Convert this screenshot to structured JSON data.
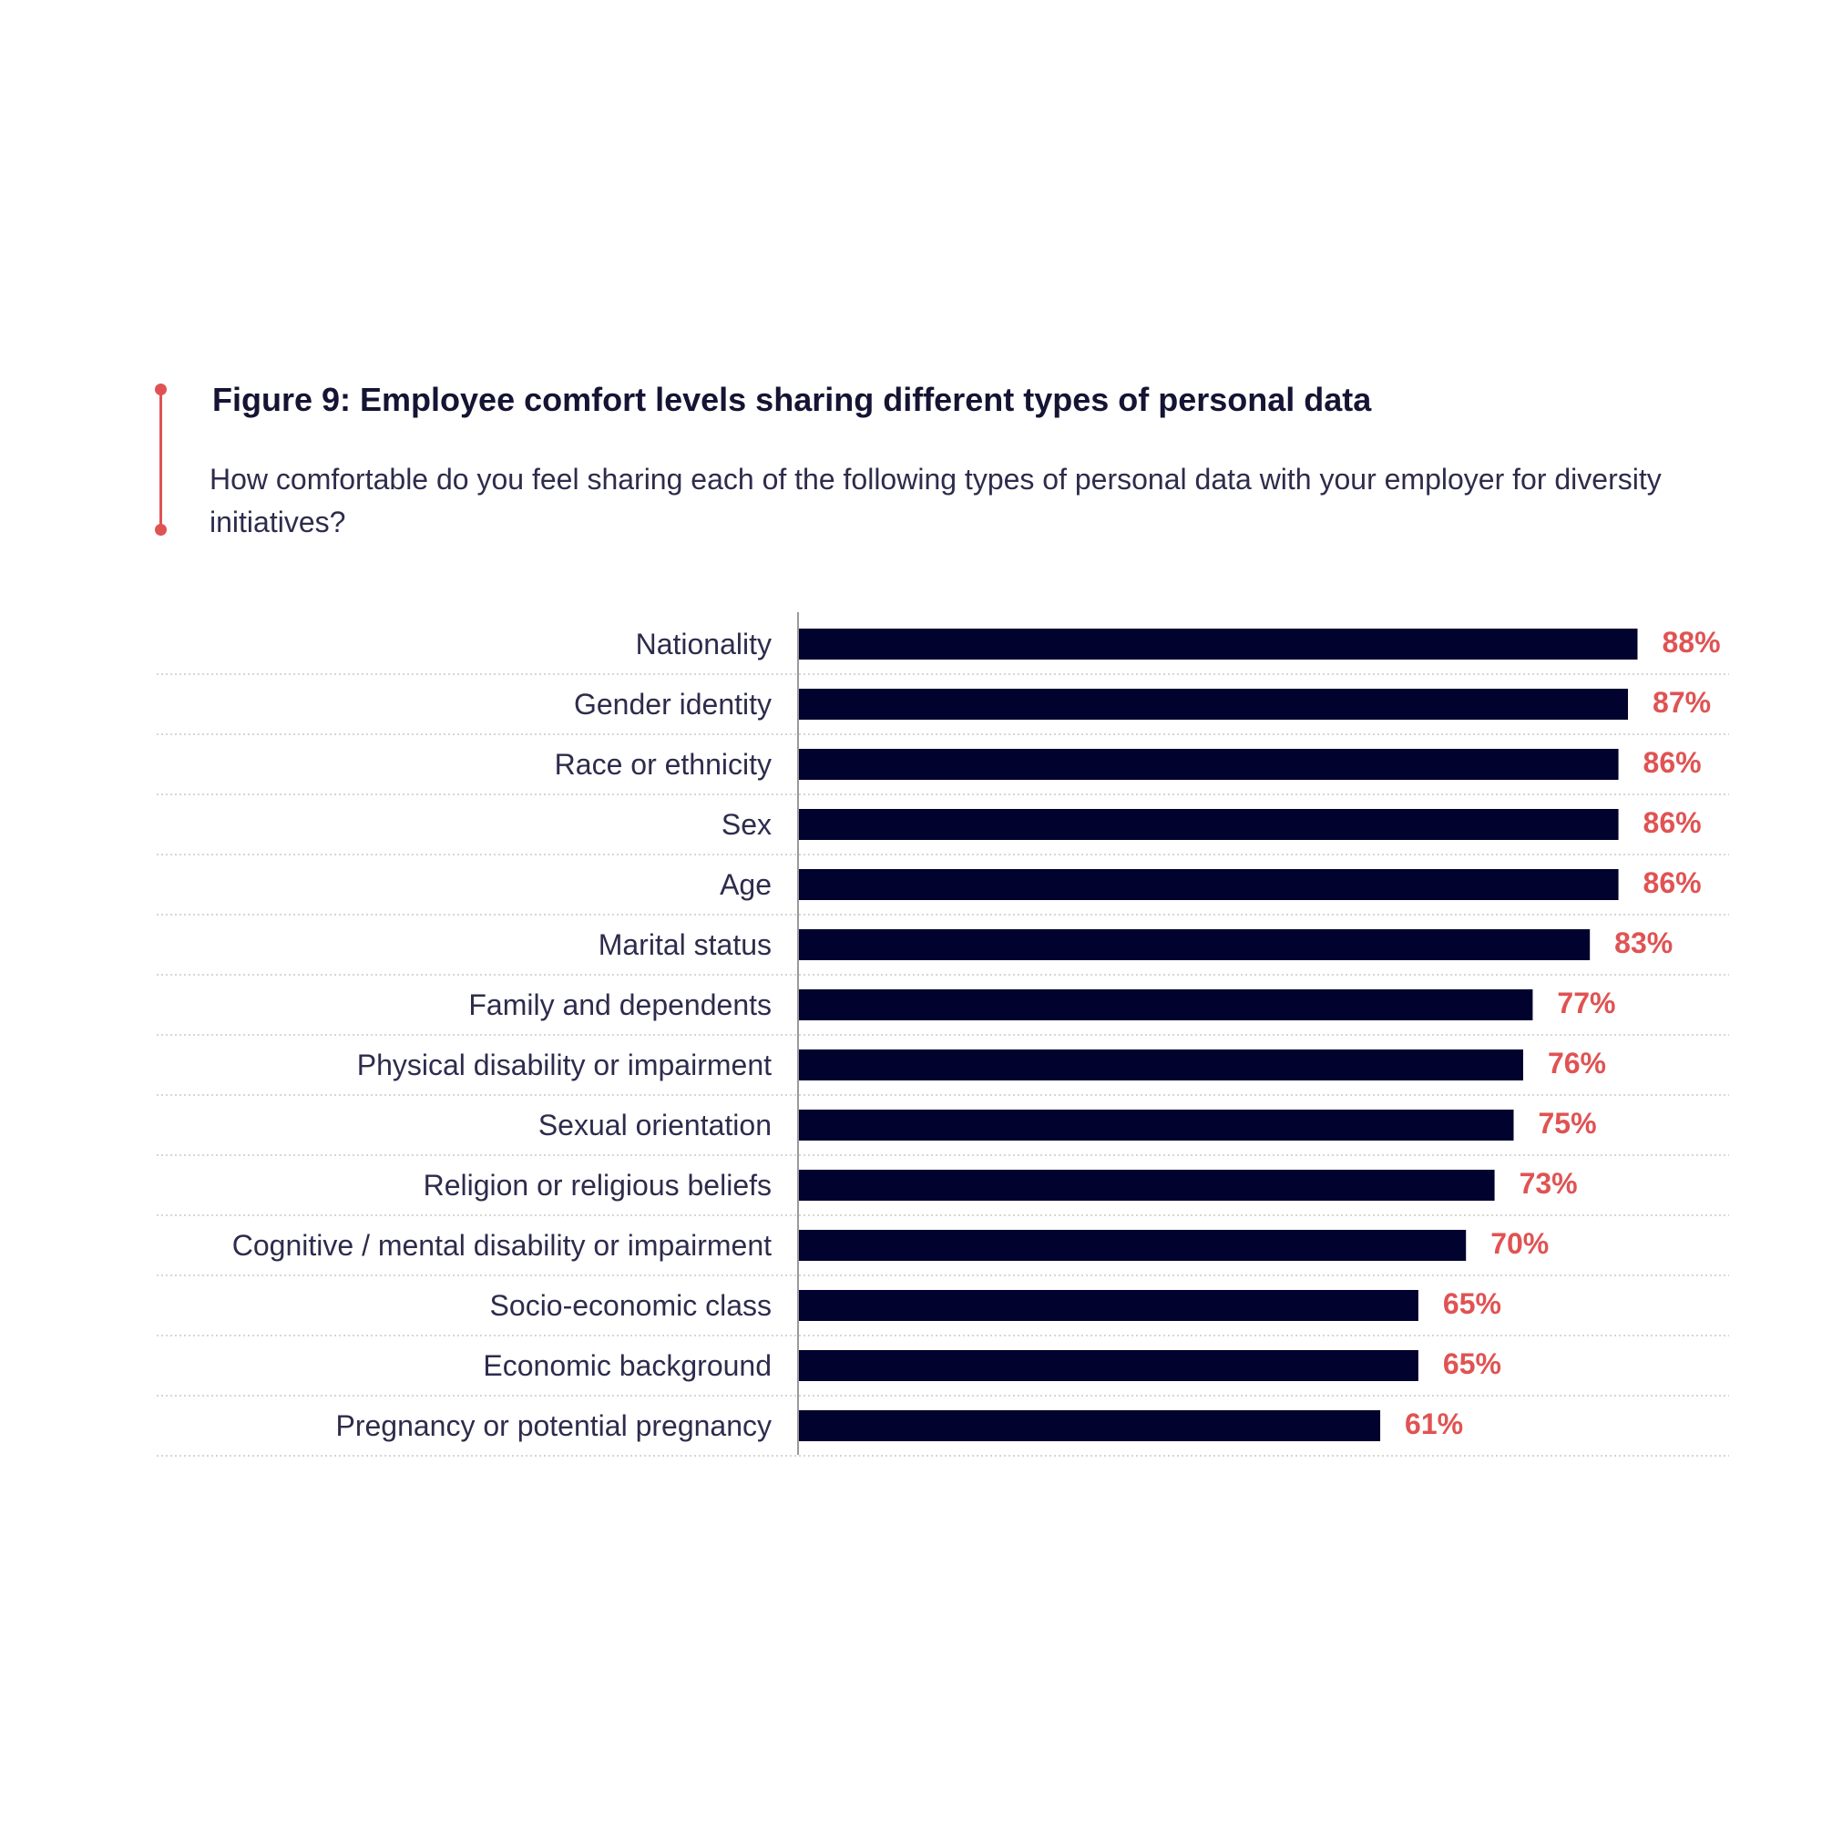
{
  "header": {
    "title": "Figure 9: Employee comfort levels sharing different types of personal data",
    "subtitle": "How comfortable do you feel sharing each of the following types of personal data with your employer for diversity initiatives?"
  },
  "colors": {
    "bar": "#02022e",
    "value_label": "#e05353",
    "accent": "#e05353",
    "gridline": "#c8c8c8",
    "axis": "#9a9a9a"
  },
  "chart_data": {
    "type": "bar",
    "orientation": "horizontal",
    "title": "Figure 9: Employee comfort levels sharing different types of personal data",
    "subtitle": "How comfortable do you feel sharing each of the following types of personal data with your employer for diversity initiatives?",
    "categories": [
      "Nationality",
      "Gender identity",
      "Race or ethnicity",
      "Sex",
      "Age",
      "Marital status",
      "Family and dependents",
      "Physical disability or impairment",
      "Sexual orientation",
      "Religion or religious beliefs",
      "Cognitive / mental disability or impairment",
      "Socio-economic class",
      "Economic background",
      "Pregnancy or potential pregnancy"
    ],
    "values": [
      88,
      87,
      86,
      86,
      86,
      83,
      77,
      76,
      75,
      73,
      70,
      65,
      65,
      61
    ],
    "value_labels": [
      "88%",
      "87%",
      "86%",
      "86%",
      "86%",
      "83%",
      "77%",
      "76%",
      "75%",
      "73%",
      "70%",
      "65%",
      "65%",
      "61%"
    ],
    "xlim": [
      0,
      100
    ],
    "xlabel": "",
    "ylabel": "",
    "grid": "dotted horizontal separators",
    "legend": "none"
  }
}
